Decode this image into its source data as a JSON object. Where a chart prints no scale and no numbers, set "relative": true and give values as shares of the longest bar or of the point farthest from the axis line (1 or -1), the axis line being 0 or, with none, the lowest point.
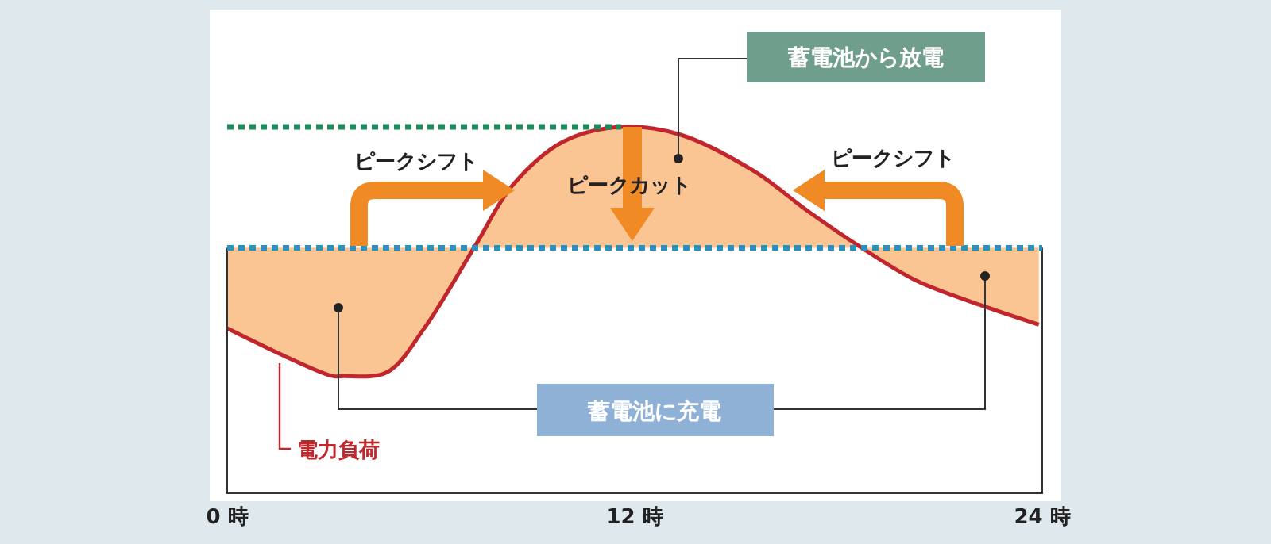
{
  "chart_data": {
    "type": "line",
    "relative": true,
    "tick_labels": "x",
    "x": [
      0,
      3.1,
      3.4,
      4.7,
      5.8,
      7.3,
      8.4,
      9.9,
      11.6,
      13.3,
      15.5,
      17.1,
      18.6,
      20.3,
      22.3,
      23.9
    ],
    "xlim": [
      0,
      24
    ],
    "xticks": [
      {
        "value": 0,
        "label": "0 時"
      },
      {
        "value": 12,
        "label": "12 時"
      },
      {
        "value": 24,
        "label": "24 時"
      }
    ],
    "series": [
      {
        "name": "電力負荷",
        "color": "#c0262c",
        "line_style": "solid",
        "values": [
          0.45,
          0.32,
          0.32,
          0.33,
          0.45,
          0.675,
          0.84,
          0.96,
          1.0,
          0.98,
          0.88,
          0.77,
          0.675,
          0.58,
          0.51,
          0.46
        ]
      }
    ],
    "ref_lines": [
      {
        "axis": "y",
        "value": 1.0,
        "color": "#1f8a5c",
        "line_style": "dotted"
      },
      {
        "axis": "y",
        "value": 0.67,
        "color": "#2a90c0",
        "line_style": "dotted"
      }
    ],
    "annotations": [
      "蓄電池から放電",
      "蓄電池に充電",
      "ピークシフト",
      "ピークカット",
      "ピークシフト"
    ]
  }
}
